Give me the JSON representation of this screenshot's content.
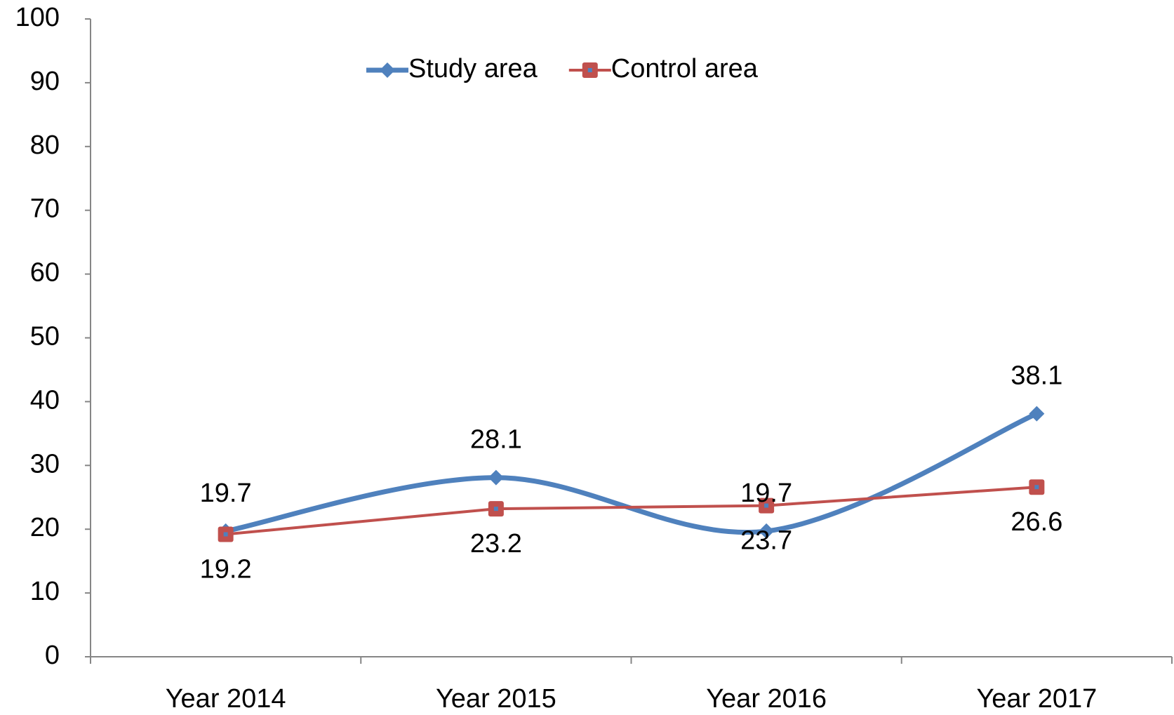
{
  "chart_data": {
    "type": "line",
    "categories": [
      "Year 2014",
      "Year 2015",
      "Year 2016",
      "Year 2017"
    ],
    "series": [
      {
        "name": "Study area",
        "color": "#4f81bd",
        "marker": "diamond",
        "smooth": true,
        "values": [
          19.7,
          28.1,
          19.7,
          38.1
        ]
      },
      {
        "name": "Control area",
        "color": "#c0504d",
        "marker": "square",
        "smooth": false,
        "values": [
          19.2,
          23.2,
          23.7,
          26.6
        ]
      }
    ],
    "ylim": [
      0,
      100
    ],
    "yticks": [
      0,
      10,
      20,
      30,
      40,
      50,
      60,
      70,
      80,
      90,
      100
    ],
    "grid": false,
    "legend": "top"
  }
}
